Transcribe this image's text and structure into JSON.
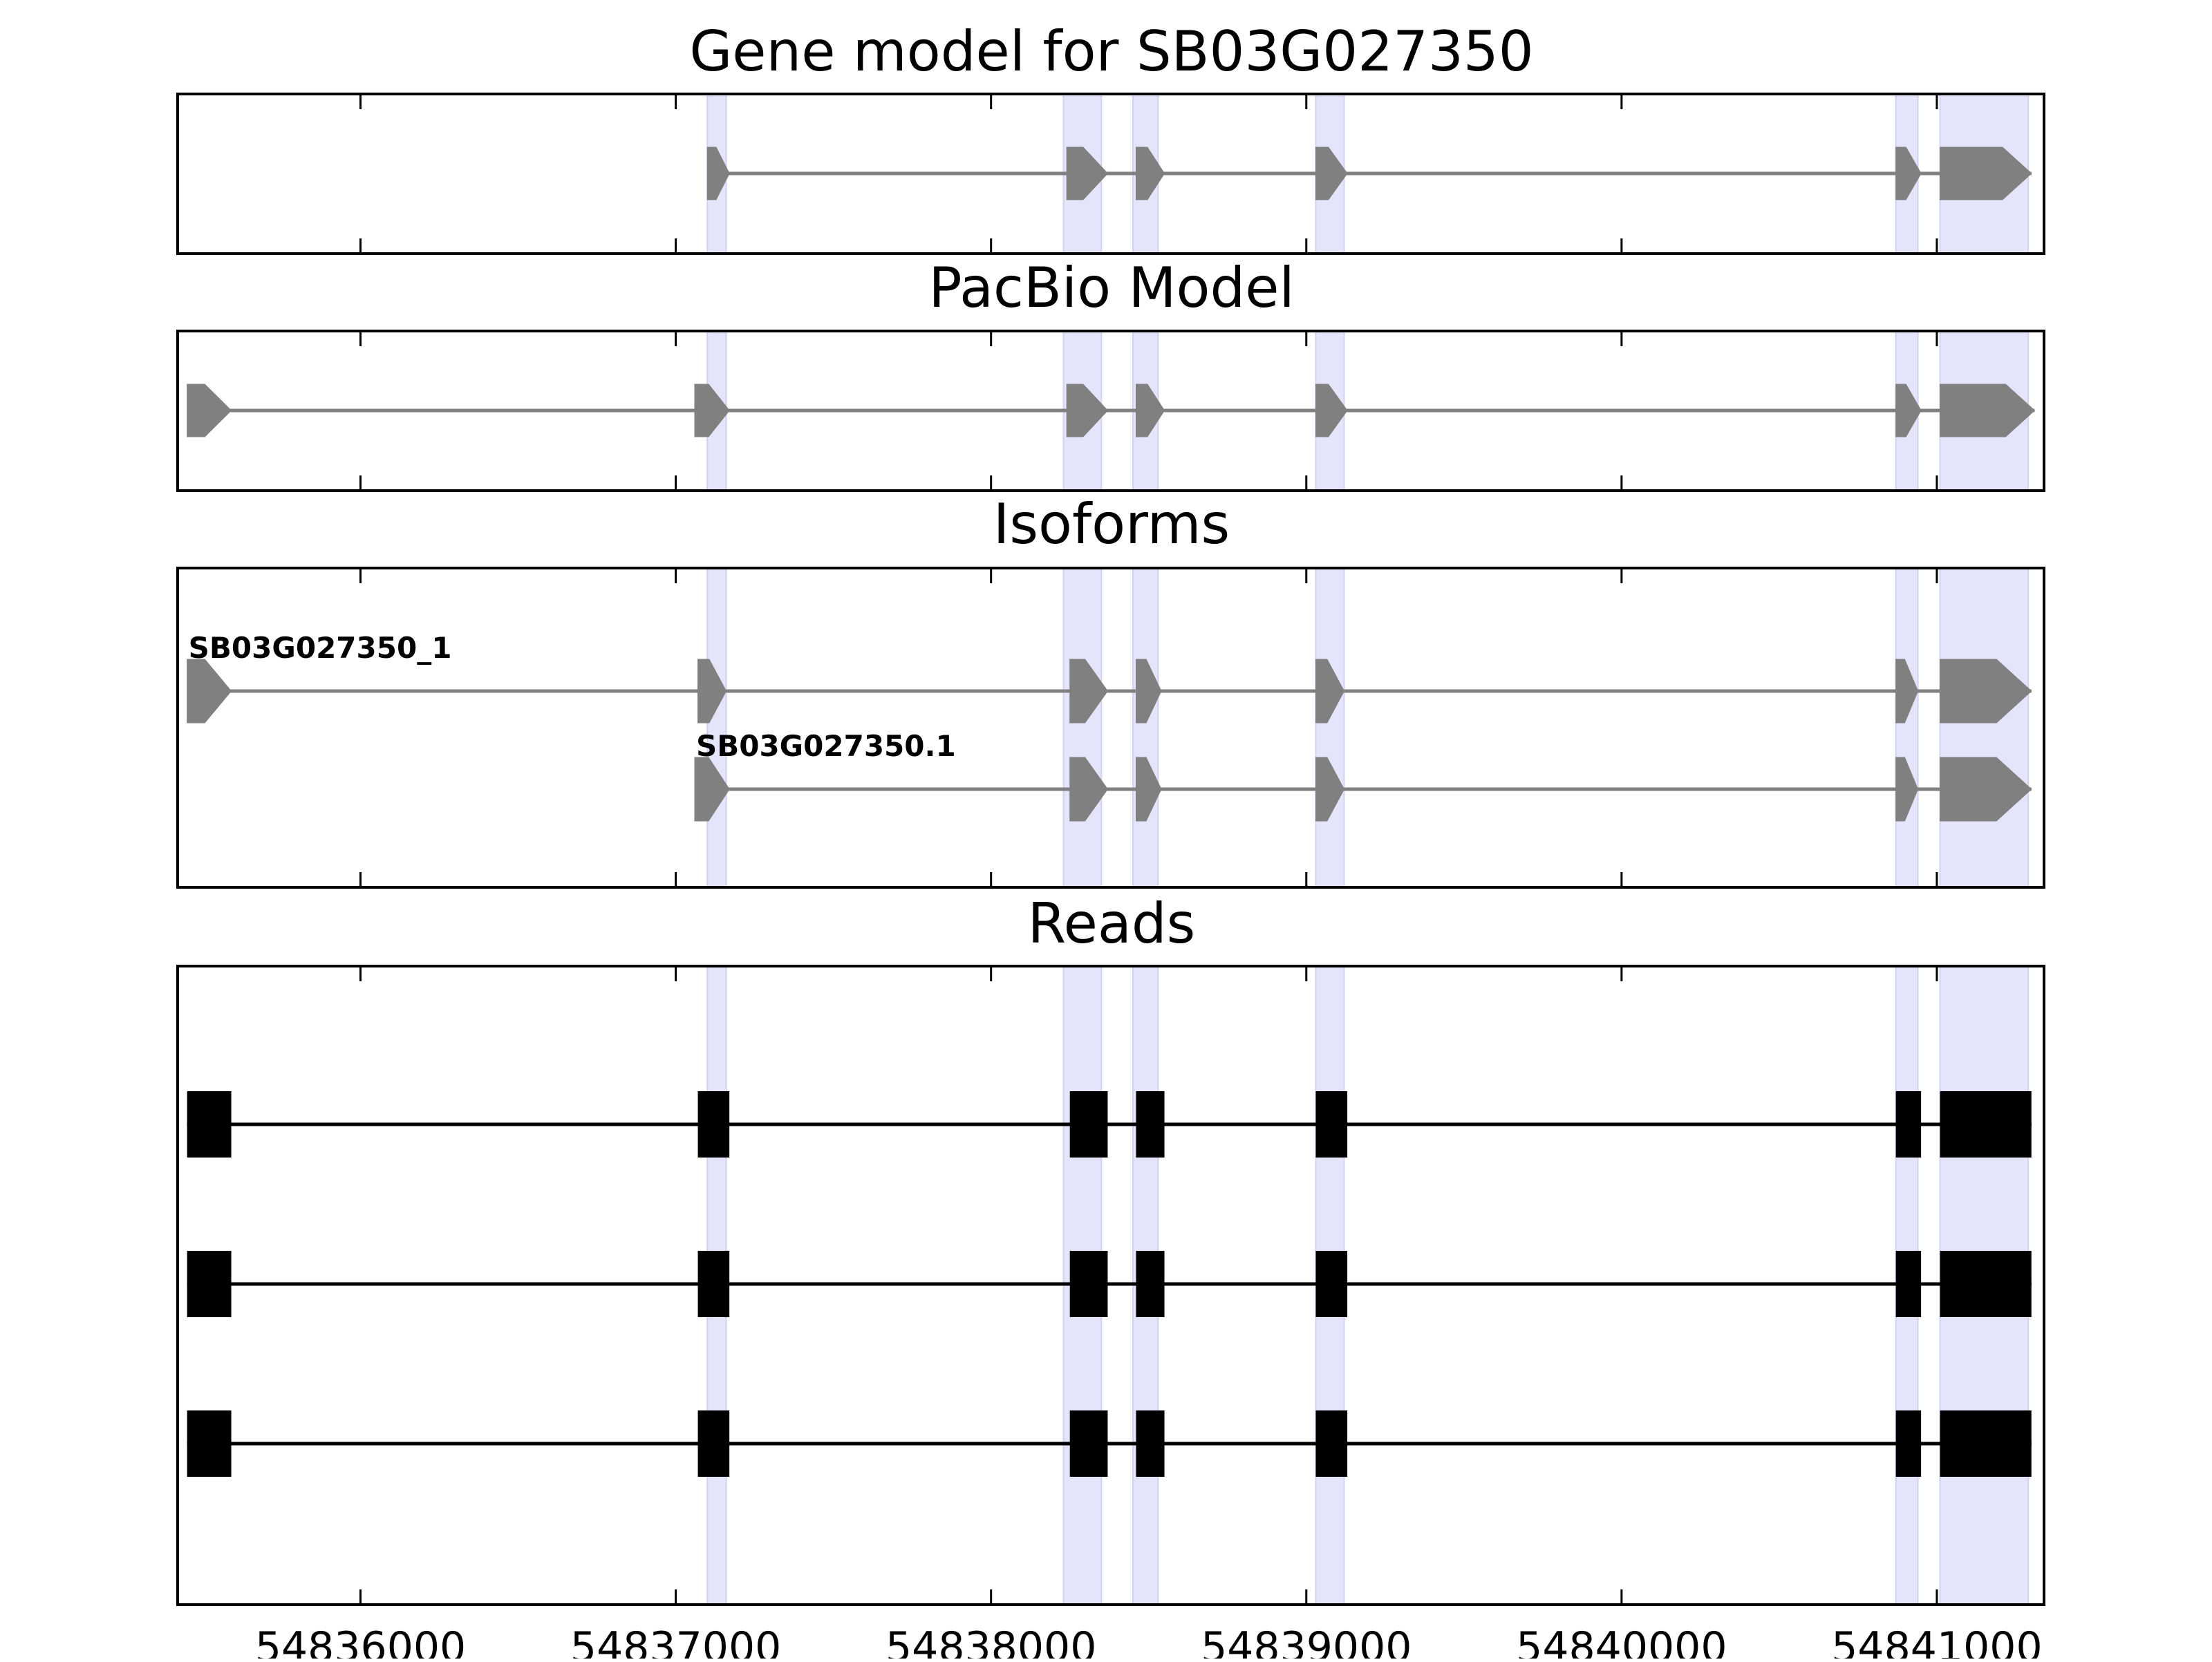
{
  "titles": {
    "gene_model": "Gene model for SB03G027350",
    "pacbio": "PacBio Model",
    "isoforms": "Isoforms",
    "reads": "Reads"
  },
  "colors": {
    "feature": "#808080",
    "read": "#000000",
    "highlight": "#e4e4fb",
    "highlight_edge": "#d2d2f4",
    "intron_line": "#808080"
  },
  "chart_data": {
    "type": "gene_structure",
    "x_axis": {
      "min": 54835420,
      "max": 54841340,
      "ticks": [
        54836000,
        54837000,
        54838000,
        54839000,
        54840000,
        54841000
      ],
      "tick_labels": [
        "54836000",
        "54837000",
        "54838000",
        "54839000",
        "54840000",
        "54841000"
      ]
    },
    "highlight_regions": [
      [
        54837100,
        54837160
      ],
      [
        54838230,
        54838350
      ],
      [
        54838450,
        54838530
      ],
      [
        54839030,
        54839120
      ],
      [
        54840870,
        54840940
      ],
      [
        54841010,
        54841290
      ]
    ],
    "gene_model": {
      "strand": "+",
      "exons": [
        [
          54837100,
          54837170
        ],
        [
          54838240,
          54838370
        ],
        [
          54838460,
          54838550
        ],
        [
          54839030,
          54839130
        ],
        [
          54840870,
          54840950
        ],
        [
          54841010,
          54841300
        ]
      ]
    },
    "pacbio_model": {
      "strand": "+",
      "exons": [
        [
          54835450,
          54835590
        ],
        [
          54837060,
          54837170
        ],
        [
          54838240,
          54838370
        ],
        [
          54838460,
          54838550
        ],
        [
          54839030,
          54839130
        ],
        [
          54840870,
          54840950
        ],
        [
          54841010,
          54841310
        ]
      ]
    },
    "isoforms": [
      {
        "name": "SB03G027350_1",
        "strand": "+",
        "exons": [
          [
            54835450,
            54835590
          ],
          [
            54837070,
            54837160
          ],
          [
            54838250,
            54838370
          ],
          [
            54838460,
            54838540
          ],
          [
            54839030,
            54839120
          ],
          [
            54840870,
            54840940
          ],
          [
            54841010,
            54841300
          ]
        ]
      },
      {
        "name": "SB03G027350.1",
        "strand": "+",
        "exons": [
          [
            54837060,
            54837170
          ],
          [
            54838250,
            54838370
          ],
          [
            54838460,
            54838540
          ],
          [
            54839030,
            54839120
          ],
          [
            54840870,
            54840940
          ],
          [
            54841010,
            54841300
          ]
        ]
      }
    ],
    "reads": [
      {
        "exons": [
          [
            54835450,
            54835590
          ],
          [
            54837070,
            54837170
          ],
          [
            54838250,
            54838370
          ],
          [
            54838460,
            54838550
          ],
          [
            54839030,
            54839130
          ],
          [
            54840870,
            54840950
          ],
          [
            54841010,
            54841300
          ]
        ]
      },
      {
        "exons": [
          [
            54835450,
            54835590
          ],
          [
            54837070,
            54837170
          ],
          [
            54838250,
            54838370
          ],
          [
            54838460,
            54838550
          ],
          [
            54839030,
            54839130
          ],
          [
            54840870,
            54840950
          ],
          [
            54841010,
            54841300
          ]
        ]
      },
      {
        "exons": [
          [
            54835450,
            54835590
          ],
          [
            54837070,
            54837170
          ],
          [
            54838250,
            54838370
          ],
          [
            54838460,
            54838550
          ],
          [
            54839030,
            54839130
          ],
          [
            54840870,
            54840950
          ],
          [
            54841010,
            54841300
          ]
        ]
      }
    ]
  }
}
